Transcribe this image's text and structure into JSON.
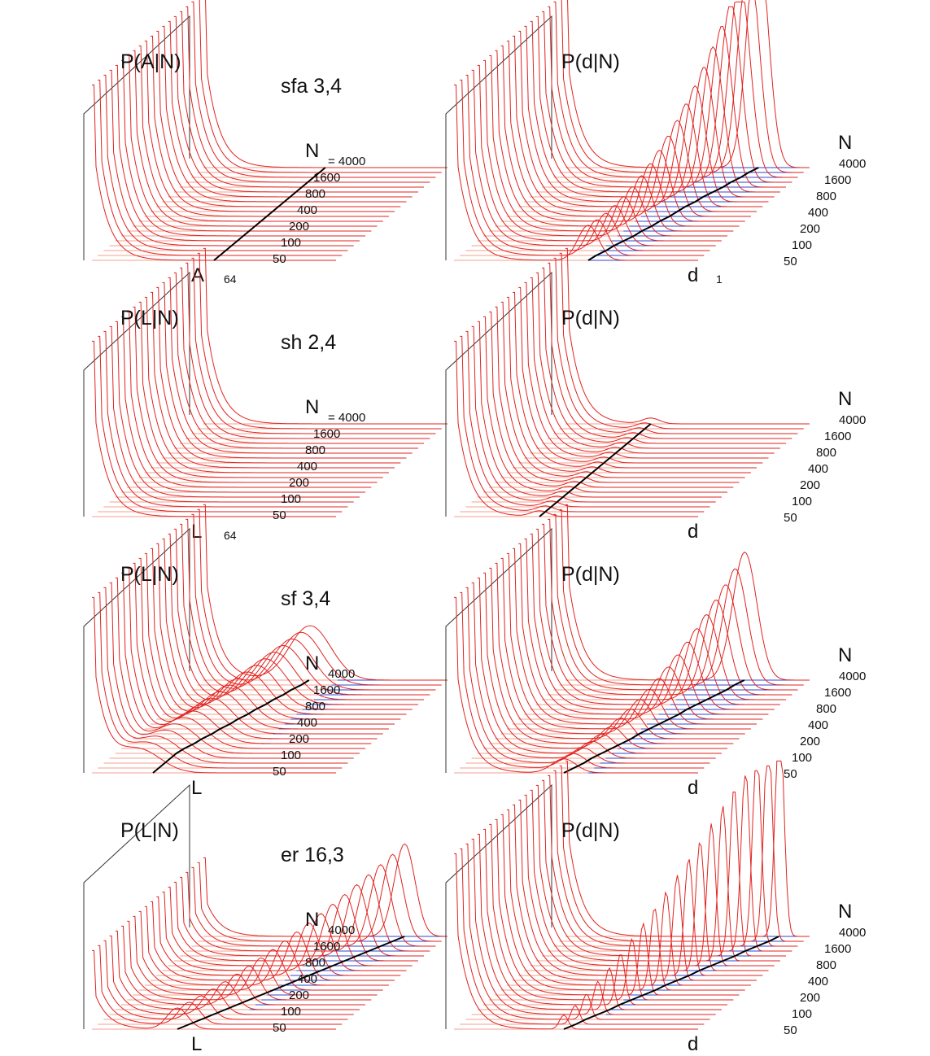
{
  "figure": {
    "rows": [
      {
        "network": "sfa 3,4",
        "left": {
          "ylabel": "P(A|N)",
          "xlabel": "A",
          "x_max_label": "64",
          "n_label": "N",
          "n_prefix": "= 4000",
          "peak": "sfa_left"
        },
        "right": {
          "ylabel": "P(d|N)",
          "xlabel": "d",
          "x_max_label": "1",
          "n_label": "N",
          "n_prefix": "4000",
          "peak": "sfa_right"
        }
      },
      {
        "network": "sh 2,4",
        "left": {
          "ylabel": "P(L|N)",
          "xlabel": "L",
          "x_max_label": "64",
          "n_label": "N",
          "n_prefix": "= 4000",
          "peak": "sh_left"
        },
        "right": {
          "ylabel": "P(d|N)",
          "xlabel": "d",
          "x_max_label": "",
          "n_label": "N",
          "n_prefix": "4000",
          "peak": "sh_right"
        }
      },
      {
        "network": "sf 3,4",
        "left": {
          "ylabel": "P(L|N)",
          "xlabel": "L",
          "x_max_label": "",
          "n_label": "N",
          "n_prefix": "4000",
          "peak": "sf_left"
        },
        "right": {
          "ylabel": "P(d|N)",
          "xlabel": "d",
          "x_max_label": "",
          "n_label": "N",
          "n_prefix": "4000",
          "peak": "sf_right"
        }
      },
      {
        "network": "er 16,3",
        "left": {
          "ylabel": "P(L|N)",
          "xlabel": "L",
          "x_max_label": "",
          "n_label": "N",
          "n_prefix": "4000",
          "peak": "er_left"
        },
        "right": {
          "ylabel": "P(d|N)",
          "xlabel": "d",
          "x_max_label": "",
          "n_label": "N",
          "n_prefix": "4000",
          "peak": "er_right"
        }
      }
    ],
    "n_ticks": [
      "4000",
      "1600",
      "800",
      "400",
      "200",
      "100",
      "50"
    ]
  },
  "chart_data": {
    "type": "surface",
    "panels": [
      {
        "row": 1,
        "network": "sfa 3,4",
        "ylabel": "P(A|N)",
        "xlabel": "A",
        "x_max": 64,
        "n_values": [
          50,
          100,
          200,
          400,
          800,
          1600,
          4000
        ],
        "peak_mean_trend": "increasing with N"
      },
      {
        "row": 1,
        "network": "sfa 3,4",
        "ylabel": "P(d|N)",
        "xlabel": "d",
        "x_max": 1,
        "n_values": [
          50,
          100,
          200,
          400,
          800,
          1600,
          4000
        ],
        "peak_mean_trend": "increasing with N"
      },
      {
        "row": 2,
        "network": "sh 2,4",
        "ylabel": "P(L|N)",
        "xlabel": "L",
        "x_max": 64,
        "n_values": [
          50,
          100,
          200,
          400,
          800,
          1600,
          4000
        ]
      },
      {
        "row": 2,
        "network": "sh 2,4",
        "ylabel": "P(d|N)",
        "xlabel": "d",
        "n_values": [
          50,
          100,
          200,
          400,
          800,
          1600,
          4000
        ]
      },
      {
        "row": 3,
        "network": "sf 3,4",
        "ylabel": "P(L|N)",
        "xlabel": "L",
        "n_values": [
          50,
          100,
          200,
          400,
          800,
          1600,
          4000
        ],
        "peak_mean_trend": "increasing with N"
      },
      {
        "row": 3,
        "network": "sf 3,4",
        "ylabel": "P(d|N)",
        "xlabel": "d",
        "n_values": [
          50,
          100,
          200,
          400,
          800,
          1600,
          4000
        ],
        "peak_mean_trend": "increasing with N"
      },
      {
        "row": 4,
        "network": "er 16,3",
        "ylabel": "P(L|N)",
        "xlabel": "L",
        "n_values": [
          50,
          100,
          200,
          400,
          800,
          1600,
          4000
        ],
        "peak_mean_trend": "increasing with N"
      },
      {
        "row": 4,
        "network": "er 16,3",
        "ylabel": "P(d|N)",
        "xlabel": "d",
        "n_values": [
          50,
          100,
          200,
          400,
          800,
          1600,
          4000
        ],
        "peak_mean_trend": "increasing with N"
      }
    ],
    "colors": {
      "curves": "#e0231f",
      "floor_near": "#f3a090",
      "floor_far": "#3046c8",
      "hatch": "#2aa84a",
      "trend_line": "#000000",
      "frame": "#333333"
    }
  }
}
